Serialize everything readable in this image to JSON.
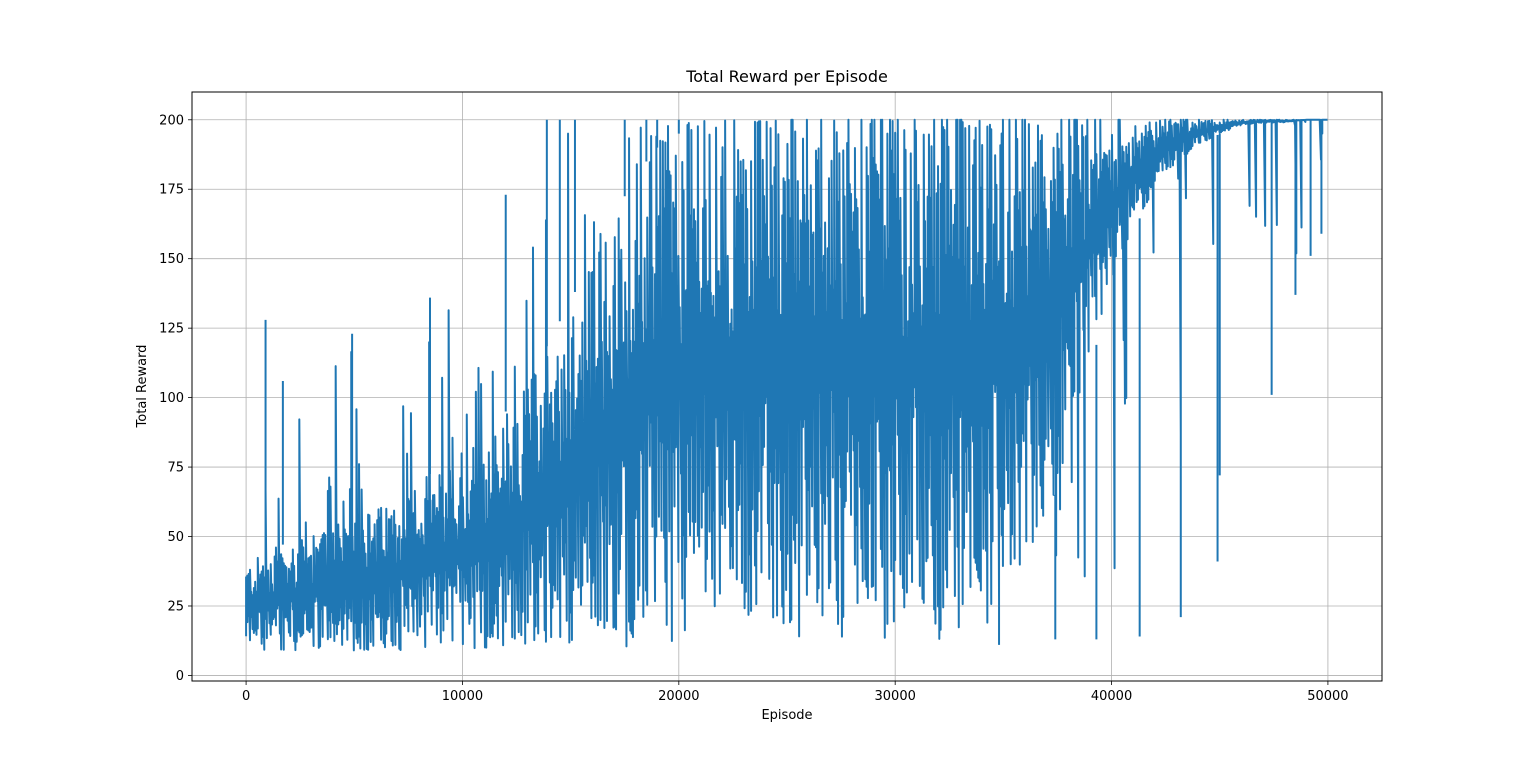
{
  "chart_data": {
    "type": "line",
    "title": "Total Reward per Episode",
    "xlabel": "Episode",
    "ylabel": "Total Reward",
    "xlim": [
      -2500,
      52500
    ],
    "ylim": [
      -2,
      210
    ],
    "x_ticks": [
      "0",
      "10000",
      "20000",
      "30000",
      "40000",
      "50000"
    ],
    "y_ticks": [
      "0",
      "25",
      "50",
      "75",
      "100",
      "125",
      "150",
      "175",
      "200"
    ],
    "grid": true,
    "legend": "none",
    "series": [
      {
        "color": "#1f77b4",
        "style": "dense noisy line, one point per episode",
        "x": [
          0,
          1000,
          2000,
          3000,
          4000,
          5000,
          6000,
          7000,
          8000,
          9000,
          10000,
          11000,
          12000,
          13000,
          14000,
          15000,
          16000,
          17000,
          18000,
          19000,
          20000,
          21000,
          22000,
          23000,
          24000,
          25000,
          26000,
          27000,
          28000,
          29000,
          30000,
          31000,
          32000,
          33000,
          34000,
          35000,
          36000,
          37000,
          38000,
          39000,
          40000,
          41000,
          42000,
          43000,
          44000,
          45000,
          46000,
          47000,
          48000,
          49000,
          50000
        ],
        "upper_envelope": [
          64,
          128,
          106,
          88,
          110,
          123,
          112,
          104,
          110,
          136,
          136,
          140,
          173,
          157,
          200,
          200,
          194,
          200,
          200,
          200,
          200,
          200,
          200,
          200,
          200,
          200,
          200,
          200,
          200,
          200,
          200,
          200,
          200,
          200,
          200,
          200,
          200,
          200,
          200,
          200,
          200,
          200,
          200,
          200,
          200,
          200,
          200,
          200,
          200,
          200,
          200
        ],
        "lower_envelope": [
          9,
          9,
          9,
          9,
          9,
          9,
          9,
          9,
          9,
          9,
          9,
          10,
          10,
          10,
          10,
          10,
          10,
          10,
          10,
          11,
          11,
          12,
          12,
          12,
          12,
          13,
          13,
          13,
          13,
          13,
          13,
          13,
          13,
          14,
          14,
          15,
          18,
          20,
          22,
          28,
          35,
          45,
          55,
          70,
          85,
          100,
          110,
          120,
          135,
          150,
          198
        ],
        "typical_band": [
          [
            10,
            40
          ],
          [
            10,
            45
          ],
          [
            10,
            48
          ],
          [
            10,
            50
          ],
          [
            10,
            55
          ],
          [
            10,
            58
          ],
          [
            10,
            60
          ],
          [
            10,
            65
          ],
          [
            10,
            70
          ],
          [
            10,
            75
          ],
          [
            10,
            80
          ],
          [
            11,
            88
          ],
          [
            12,
            95
          ],
          [
            13,
            105
          ],
          [
            14,
            120
          ],
          [
            15,
            135
          ],
          [
            16,
            150
          ],
          [
            17,
            165
          ],
          [
            18,
            180
          ],
          [
            20,
            190
          ],
          [
            22,
            195
          ],
          [
            24,
            198
          ],
          [
            25,
            199
          ],
          [
            25,
            199
          ],
          [
            25,
            199
          ],
          [
            25,
            200
          ],
          [
            25,
            200
          ],
          [
            25,
            200
          ],
          [
            25,
            200
          ],
          [
            25,
            200
          ],
          [
            25,
            200
          ],
          [
            25,
            200
          ],
          [
            25,
            200
          ],
          [
            25,
            200
          ],
          [
            25,
            200
          ],
          [
            30,
            200
          ],
          [
            40,
            200
          ],
          [
            55,
            200
          ],
          [
            80,
            200
          ],
          [
            110,
            200
          ],
          [
            140,
            200
          ],
          [
            160,
            200
          ],
          [
            175,
            200
          ],
          [
            185,
            200
          ],
          [
            190,
            200
          ],
          [
            195,
            200
          ],
          [
            198,
            200
          ],
          [
            199,
            200
          ],
          [
            199,
            200
          ],
          [
            200,
            200
          ],
          [
            200,
            200
          ]
        ],
        "spikes": [
          [
            900,
            128
          ],
          [
            1700,
            106
          ],
          [
            4900,
            123
          ],
          [
            8500,
            136
          ],
          [
            12000,
            173
          ],
          [
            13900,
            200
          ],
          [
            14500,
            200
          ],
          [
            15200,
            200
          ],
          [
            17500,
            200
          ],
          [
            18500,
            200
          ],
          [
            19000,
            200
          ],
          [
            20000,
            200
          ],
          [
            34800,
            11
          ],
          [
            37400,
            13
          ],
          [
            39300,
            13
          ],
          [
            41300,
            14
          ],
          [
            43200,
            21
          ],
          [
            44900,
            41
          ],
          [
            45000,
            72
          ],
          [
            47400,
            101
          ],
          [
            48500,
            137
          ],
          [
            49200,
            151
          ],
          [
            49700,
            159
          ]
        ]
      }
    ]
  }
}
